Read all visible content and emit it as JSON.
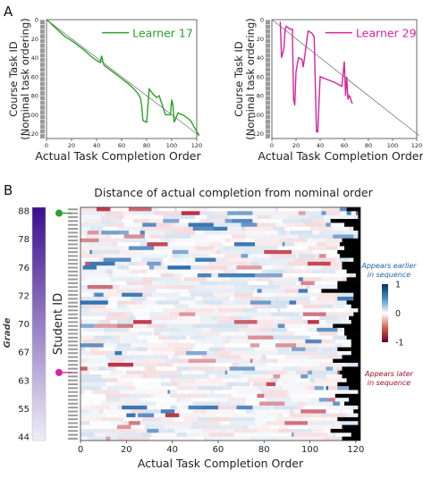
{
  "panel_letters": [
    "A",
    "B"
  ],
  "chart_data": [
    {
      "type": "line",
      "panel": "A-left",
      "legend": "Learner 17",
      "color": "#2ca02c",
      "xlabel": "Actual Task Completion Order",
      "ylabel": "Course Task ID\n(Nominal task ordering)",
      "xlim": [
        0,
        120
      ],
      "ylim": [
        0,
        125
      ],
      "xticks": [
        0,
        20,
        40,
        60,
        80,
        100,
        120
      ],
      "yticks": [
        0,
        20,
        40,
        60,
        80,
        100,
        120
      ],
      "reference_line": [
        [
          0,
          0
        ],
        [
          122,
          122
        ]
      ],
      "x": [
        0,
        2,
        5,
        10,
        15,
        20,
        25,
        30,
        35,
        40,
        43,
        44,
        45,
        46,
        50,
        55,
        60,
        65,
        70,
        72,
        75,
        76,
        77,
        80,
        82,
        85,
        88,
        90,
        95,
        99,
        100,
        101,
        102,
        105,
        110,
        115,
        118,
        122
      ],
      "y": [
        0,
        2,
        6,
        12,
        18,
        22,
        27,
        32,
        38,
        43,
        45,
        38,
        44,
        48,
        52,
        57,
        62,
        67,
        73,
        76,
        82,
        90,
        106,
        108,
        73,
        78,
        82,
        80,
        100,
        100,
        84,
        90,
        108,
        98,
        101,
        106,
        113,
        122
      ]
    },
    {
      "type": "line",
      "panel": "A-right",
      "legend": "Learner 29",
      "color": "#d6249f",
      "xlabel": "Actual Task Completion Order",
      "ylabel": "Course Task ID\n(Nominal task ordering)",
      "xlim": [
        0,
        120
      ],
      "ylim": [
        0,
        125
      ],
      "xticks": [
        0,
        20,
        40,
        60,
        80,
        100,
        120
      ],
      "yticks": [
        0,
        20,
        40,
        60,
        80,
        100,
        120
      ],
      "reference_line": [
        [
          0,
          0
        ],
        [
          122,
          122
        ]
      ],
      "x": [
        7,
        8,
        10,
        11,
        12,
        15,
        17,
        18,
        19,
        20,
        22,
        25,
        26,
        30,
        33,
        35,
        37,
        38,
        40,
        44,
        48,
        52,
        55,
        58,
        60,
        61,
        62,
        63,
        64,
        65,
        66,
        67
      ],
      "y": [
        2,
        40,
        30,
        10,
        7,
        10,
        10,
        84,
        90,
        55,
        40,
        42,
        50,
        12,
        14,
        18,
        118,
        118,
        60,
        62,
        64,
        66,
        68,
        70,
        44,
        80,
        60,
        84,
        80,
        82,
        87,
        88
      ]
    },
    {
      "type": "heatmap",
      "panel": "B",
      "title": "Distance of actual completion from nominal order",
      "xlabel": "Actual Task Completion Order",
      "ylabel": "Student ID",
      "xticks": [
        0,
        20,
        40,
        60,
        80,
        100,
        120
      ],
      "n_students": 60,
      "colorbar": {
        "ticks": [
          "1",
          "0",
          "-1"
        ],
        "top_label": "Appears earlier in sequence",
        "bottom_label": "Appears later in sequence",
        "top_color": "#2166ac",
        "bottom_color": "#a50f2d"
      },
      "grade_bar": {
        "label": "Grade",
        "ticks": [
          "88",
          "78",
          "76",
          "72",
          "70",
          "67",
          "63",
          "55",
          "44"
        ],
        "color_top": "#3b0f8f",
        "color_bottom": "#efeef8"
      },
      "markers": [
        {
          "row": 1,
          "color": "#2ca02c",
          "learner": 17
        },
        {
          "row": 42,
          "color": "#d6249f",
          "learner": 29
        }
      ]
    }
  ]
}
